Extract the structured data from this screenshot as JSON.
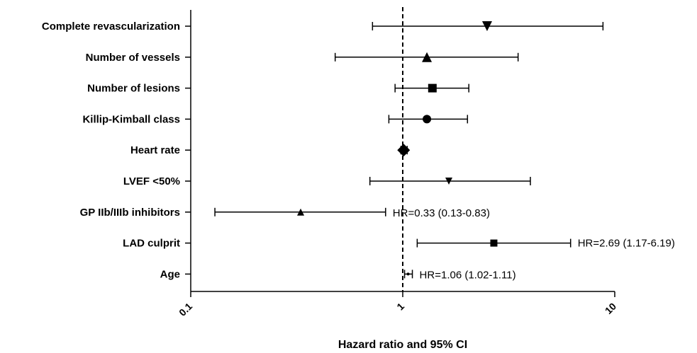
{
  "chart_data": {
    "type": "forest",
    "xscale": "log",
    "xlim": [
      0.1,
      10
    ],
    "xticks": [
      "0.1",
      "1",
      "10"
    ],
    "xlabel": "Hazard ratio and 95% CI",
    "reference_line": 1,
    "grid": false,
    "rows": [
      {
        "label": "Complete revascularization",
        "hr": 2.5,
        "lo": 0.72,
        "hi": 8.8,
        "marker": "triangle-down",
        "annotation": ""
      },
      {
        "label": "Number of vessels",
        "hr": 1.3,
        "lo": 0.48,
        "hi": 3.5,
        "marker": "triangle-up",
        "annotation": ""
      },
      {
        "label": "Number of lesions",
        "hr": 1.38,
        "lo": 0.92,
        "hi": 2.05,
        "marker": "square",
        "annotation": ""
      },
      {
        "label": "Killip-Kimball class",
        "hr": 1.3,
        "lo": 0.86,
        "hi": 2.02,
        "marker": "circle",
        "annotation": ""
      },
      {
        "label": "Heart rate",
        "hr": 1.01,
        "lo": 0.98,
        "hi": 1.05,
        "marker": "diamond",
        "annotation": ""
      },
      {
        "label": "LVEF <50%",
        "hr": 1.65,
        "lo": 0.7,
        "hi": 4.0,
        "marker": "triangle-down-small",
        "annotation": ""
      },
      {
        "label": "GP IIb/IIIb inhibitors",
        "hr": 0.33,
        "lo": 0.13,
        "hi": 0.83,
        "marker": "triangle-up-small",
        "annotation": "HR=0.33 (0.13-0.83)"
      },
      {
        "label": "LAD culprit",
        "hr": 2.69,
        "lo": 1.17,
        "hi": 6.19,
        "marker": "square-small",
        "annotation": "HR=2.69 (1.17-6.19)"
      },
      {
        "label": "Age",
        "hr": 1.06,
        "lo": 1.02,
        "hi": 1.11,
        "marker": "dot",
        "annotation": "HR=1.06 (1.02-1.11)"
      }
    ]
  }
}
